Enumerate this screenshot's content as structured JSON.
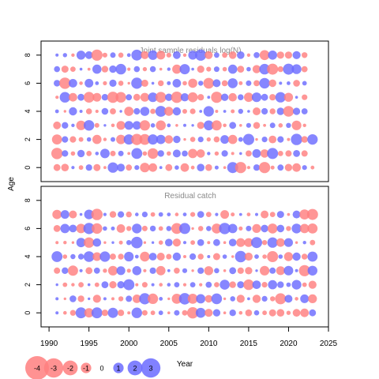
{
  "chart_data": [
    {
      "type": "scatter",
      "title": "Joint sample residuals log(N)",
      "ylabel": "Age",
      "x_range": [
        1991,
        2023
      ],
      "ylim": [
        -1,
        9
      ],
      "yticks": [
        0,
        2,
        4,
        6,
        8
      ],
      "ages": [
        0,
        1,
        2,
        3,
        4,
        5,
        6,
        7,
        8
      ],
      "encoding": "bubble area proportional to |residual|; red = negative, blue = positive",
      "residual_sign_by_age": [
        "- - + - + - - + + - + - - + - + - - + - + - + - - + - - + - - + -",
        "- + - + - + + - + - + - - + - + + - - + - + - + - + - + - - + -",
        "- + - - + - - + - + - - + + - + - - + - - + - + + - + - + - + - +",
        "- + + - + - + - - + + - + - + - + + - + - - + - + - - + - + - -",
        "+ - + + - - + - + - + + - + - + - - + + - + - + + - + - + - + +",
        "- + - + - - + - - + - - + - + - + - - + - + - + - + + - + - + -",
        "+ - + - + + - + - - + - + - + + - - + - + - + - + - + - + + - +",
        "+ - - + - + - + + - + - + - + - + + - - + - + - + - + - - + + -",
        "+ + - + + - - + - + + - + - - + - + + - + - - + - + - + - - + -"
      ]
    },
    {
      "type": "scatter",
      "title": "Residual catch",
      "xlabel": "Year",
      "ylabel": "",
      "x_range": [
        1991,
        2023
      ],
      "xlim": [
        1989,
        2025
      ],
      "xticks": [
        1990,
        1995,
        2000,
        2005,
        2010,
        2015,
        2020,
        2025
      ],
      "ylim": [
        -1,
        9
      ],
      "yticks": [
        0,
        2,
        4,
        6,
        8
      ],
      "ages": [
        0,
        1,
        2,
        3,
        4,
        5,
        6,
        7
      ],
      "encoding": "bubble area proportional to |residual|; red = negative, blue = positive",
      "residual_sign_by_age": [
        "+ - - + - + - + - - + - - + - + - - + - + - + - - + - - - - - - +",
        "+ - + - + - + - - + - + - + - - + - + - + - + - + - + - - + - + -",
        "+ - - - + - + - + + - - + - + + - + - + - + - + - + - + + + + - -",
        "- + - + - + - - + - + - + - + - + - + - + - + - - + - + - + + - +",
        "+ - + + + - + - - + + - + - - + - + - + - + - + - + - - + - + - +",
        "- - - + - + - + - + + - + - + - + - + - + - + - - + - + - + - + -",
        "- + + - + - + + - - + - + - + - + - - + - + + - + - + - + - + - -",
        "- + - + + - + - + - + + - + + - + - + - + - - + - + - - + - + - -"
      ]
    }
  ],
  "legend": {
    "labels": [
      "-4",
      "-3",
      "-2",
      "-1",
      "0",
      "1",
      "2",
      "3"
    ],
    "values": [
      -4,
      -3,
      -2,
      -1,
      0,
      1,
      2,
      3
    ],
    "negative_color": "#ff7f7f",
    "positive_color": "#6b6bff"
  }
}
